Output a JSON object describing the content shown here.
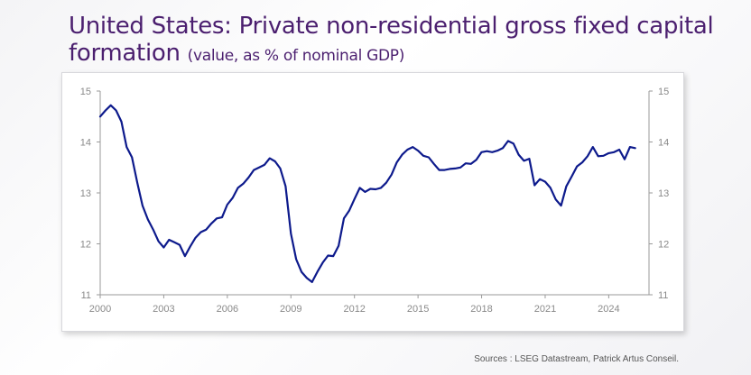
{
  "title": {
    "main": "United States: Private non-residential gross fixed capital formation",
    "sub": "(value, as % of nominal GDP)"
  },
  "source": "Sources : LSEG Datastream, Patrick Artus Conseil.",
  "colors": {
    "line": "#0d1a8c",
    "title": "#4b1f6f",
    "axis": "#9a9a9a"
  },
  "chart_data": {
    "type": "line",
    "title": "United States: Private non-residential gross fixed capital formation (value, as % of nominal GDP)",
    "xlim": [
      2000,
      2025.9
    ],
    "ylim": [
      11,
      15
    ],
    "x_ticks": [
      2000,
      2003,
      2006,
      2009,
      2012,
      2015,
      2018,
      2021,
      2024
    ],
    "y_ticks": [
      11,
      12,
      13,
      14,
      15
    ],
    "y_axis_sides": [
      "left",
      "right"
    ],
    "grid": false,
    "legend": "none",
    "series": [
      {
        "x": [
          2000.0,
          2000.25,
          2000.5,
          2000.75,
          2001.0,
          2001.25,
          2001.5,
          2001.75,
          2002.0,
          2002.25,
          2002.5,
          2002.75,
          2003.0,
          2003.25,
          2003.5,
          2003.75,
          2004.0,
          2004.25,
          2004.5,
          2004.75,
          2005.0,
          2005.25,
          2005.5,
          2005.75,
          2006.0,
          2006.25,
          2006.5,
          2006.75,
          2007.0,
          2007.25,
          2007.5,
          2007.75,
          2008.0,
          2008.25,
          2008.5,
          2008.75,
          2009.0,
          2009.25,
          2009.5,
          2009.75,
          2010.0,
          2010.25,
          2010.5,
          2010.75,
          2011.0,
          2011.25,
          2011.5,
          2011.75,
          2012.0,
          2012.25,
          2012.5,
          2012.75,
          2013.0,
          2013.25,
          2013.5,
          2013.75,
          2014.0,
          2014.25,
          2014.5,
          2014.75,
          2015.0,
          2015.25,
          2015.5,
          2015.75,
          2016.0,
          2016.25,
          2016.5,
          2016.75,
          2017.0,
          2017.25,
          2017.5,
          2017.75,
          2018.0,
          2018.25,
          2018.5,
          2018.75,
          2019.0,
          2019.25,
          2019.5,
          2019.75,
          2020.0,
          2020.25,
          2020.5,
          2020.75,
          2021.0,
          2021.25,
          2021.5,
          2021.75,
          2022.0,
          2022.25,
          2022.5,
          2022.75,
          2023.0,
          2023.25,
          2023.5,
          2023.75,
          2024.0,
          2024.25,
          2024.5,
          2024.75,
          2025.0,
          2025.25
        ],
        "y": [
          14.5,
          14.62,
          14.72,
          14.62,
          14.4,
          13.9,
          13.7,
          13.2,
          12.75,
          12.48,
          12.28,
          12.05,
          11.93,
          12.08,
          12.03,
          11.98,
          11.76,
          11.95,
          12.12,
          12.23,
          12.28,
          12.4,
          12.5,
          12.52,
          12.77,
          12.9,
          13.1,
          13.18,
          13.3,
          13.45,
          13.5,
          13.55,
          13.68,
          13.62,
          13.48,
          13.13,
          12.2,
          11.7,
          11.45,
          11.33,
          11.25,
          11.45,
          11.63,
          11.77,
          11.76,
          11.96,
          12.5,
          12.65,
          12.88,
          13.1,
          13.02,
          13.08,
          13.07,
          13.1,
          13.2,
          13.36,
          13.6,
          13.75,
          13.85,
          13.9,
          13.83,
          13.73,
          13.7,
          13.57,
          13.45,
          13.45,
          13.47,
          13.48,
          13.5,
          13.58,
          13.57,
          13.65,
          13.8,
          13.82,
          13.8,
          13.83,
          13.88,
          14.02,
          13.97,
          13.75,
          13.63,
          13.67,
          13.15,
          13.27,
          13.22,
          13.1,
          12.87,
          12.75,
          13.13,
          13.32,
          13.52,
          13.6,
          13.72,
          13.9,
          13.72,
          13.73,
          13.78,
          13.8,
          13.85,
          13.66,
          13.9,
          13.88
        ]
      }
    ]
  }
}
